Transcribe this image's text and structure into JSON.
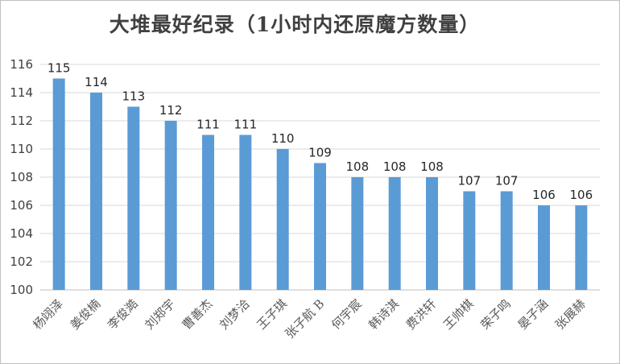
{
  "chart_data": {
    "type": "bar",
    "title": "大堆最好纪录（1小时内还原魔方数量）",
    "xlabel": "",
    "ylabel": "",
    "categories": [
      "杨翊泽",
      "姜俊楠",
      "李俊澔",
      "刘郑宇",
      "曹善杰",
      "刘梦洽",
      "王子琪",
      "张子航 B",
      "何宇宸",
      "韩诗淇",
      "费洪轩",
      "王帅棋",
      "荣子鸣",
      "晏子涵",
      "张展赫"
    ],
    "series": [
      {
        "values": [
          115,
          114,
          113,
          112,
          111,
          111,
          110,
          109,
          108,
          108,
          108,
          107,
          107,
          106,
          106
        ]
      }
    ],
    "ylim": [
      100,
      116
    ],
    "yticks": [
      100,
      102,
      104,
      106,
      108,
      110,
      112,
      114,
      116
    ],
    "grid": true,
    "legend": "none",
    "bar_color": "#5b9bd5"
  }
}
